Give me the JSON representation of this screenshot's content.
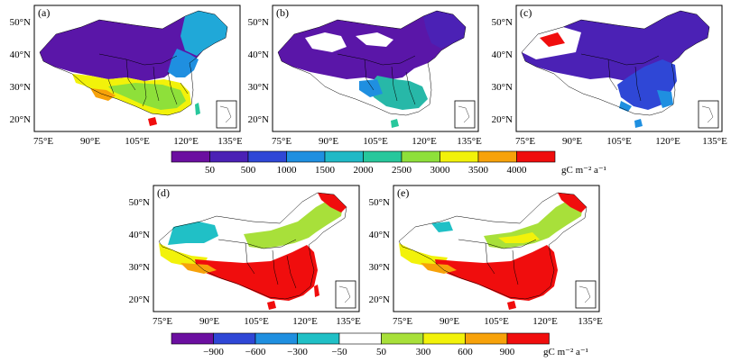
{
  "panels": {
    "a": {
      "label": "(a)"
    },
    "b": {
      "label": "(b)"
    },
    "c": {
      "label": "(c)"
    },
    "d": {
      "label": "(d)"
    },
    "e": {
      "label": "(e)"
    }
  },
  "lat_ticks": [
    "50°N",
    "40°N",
    "30°N",
    "20°N"
  ],
  "lon_ticks": [
    "75°E",
    "90°E",
    "105°E",
    "120°E",
    "135°E"
  ],
  "colorbar_top": {
    "labels": [
      "50",
      "500",
      "1000",
      "1500",
      "2000",
      "2500",
      "3000",
      "3500",
      "4000"
    ],
    "unit": "gC m⁻² a⁻¹",
    "colors": [
      "#6b0fa0",
      "#4b21b5",
      "#2f47d6",
      "#1f8fe0",
      "#20b9c6",
      "#27c79c",
      "#8ee03a",
      "#f2f20a",
      "#f7a20a",
      "#f00d0d"
    ]
  },
  "colorbar_bottom": {
    "labels": [
      "−900",
      "−600",
      "−300",
      "−50",
      "50",
      "300",
      "600",
      "900"
    ],
    "unit": "gC m⁻² a⁻¹",
    "colors": [
      "#6b0fa0",
      "#2f47d6",
      "#1f8fe0",
      "#20c0c6",
      "#ffffff",
      "#a8e03a",
      "#f2f20a",
      "#f7a20a",
      "#f00d0d"
    ]
  }
}
